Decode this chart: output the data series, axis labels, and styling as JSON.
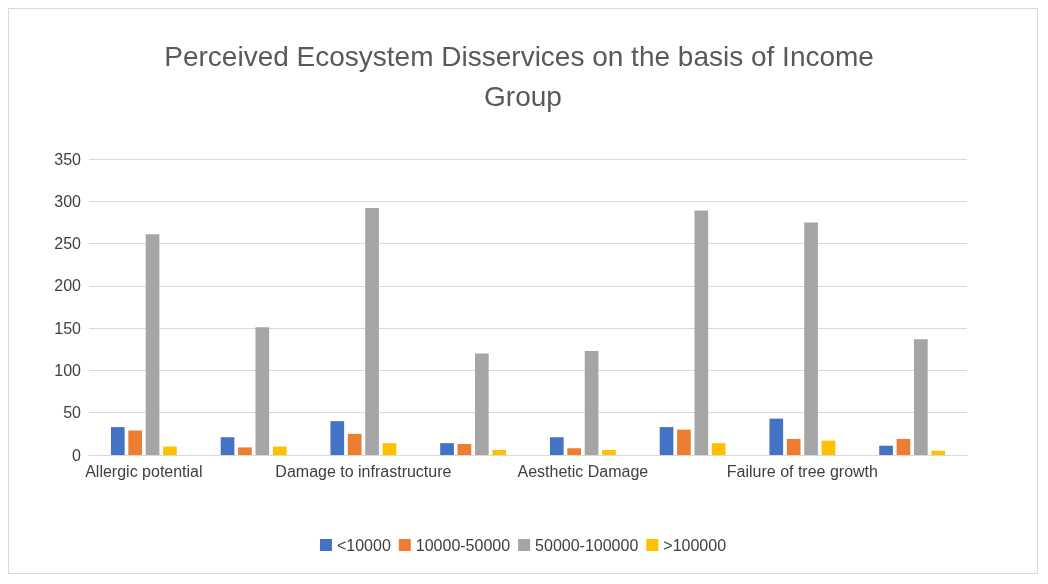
{
  "chart_data": {
    "type": "bar",
    "title": "Perceived Ecosystem Disservices on the basis of Income Group",
    "categories": [
      "Allergic potential",
      null,
      "Damage to infrastructure",
      null,
      "Aesthetic Damage",
      null,
      "Failure of tree growth",
      null
    ],
    "series": [
      {
        "name": "<10000",
        "color": "#4472c4",
        "values": [
          33,
          21,
          40,
          14,
          21,
          33,
          43,
          11
        ]
      },
      {
        "name": "10000-50000",
        "color": "#ed7d31",
        "values": [
          29,
          9,
          25,
          13,
          8,
          30,
          19,
          19
        ]
      },
      {
        "name": "50000-100000",
        "color": "#a5a5a5",
        "values": [
          261,
          151,
          292,
          120,
          123,
          289,
          275,
          137
        ]
      },
      {
        "name": ">100000",
        "color": "#ffc000",
        "values": [
          10,
          10,
          14,
          6,
          6,
          14,
          17,
          5
        ]
      }
    ],
    "ylim": [
      0,
      350
    ],
    "yticks": [
      0,
      50,
      100,
      150,
      200,
      250,
      300,
      350
    ],
    "grid": "y",
    "legend": "bottom"
  }
}
